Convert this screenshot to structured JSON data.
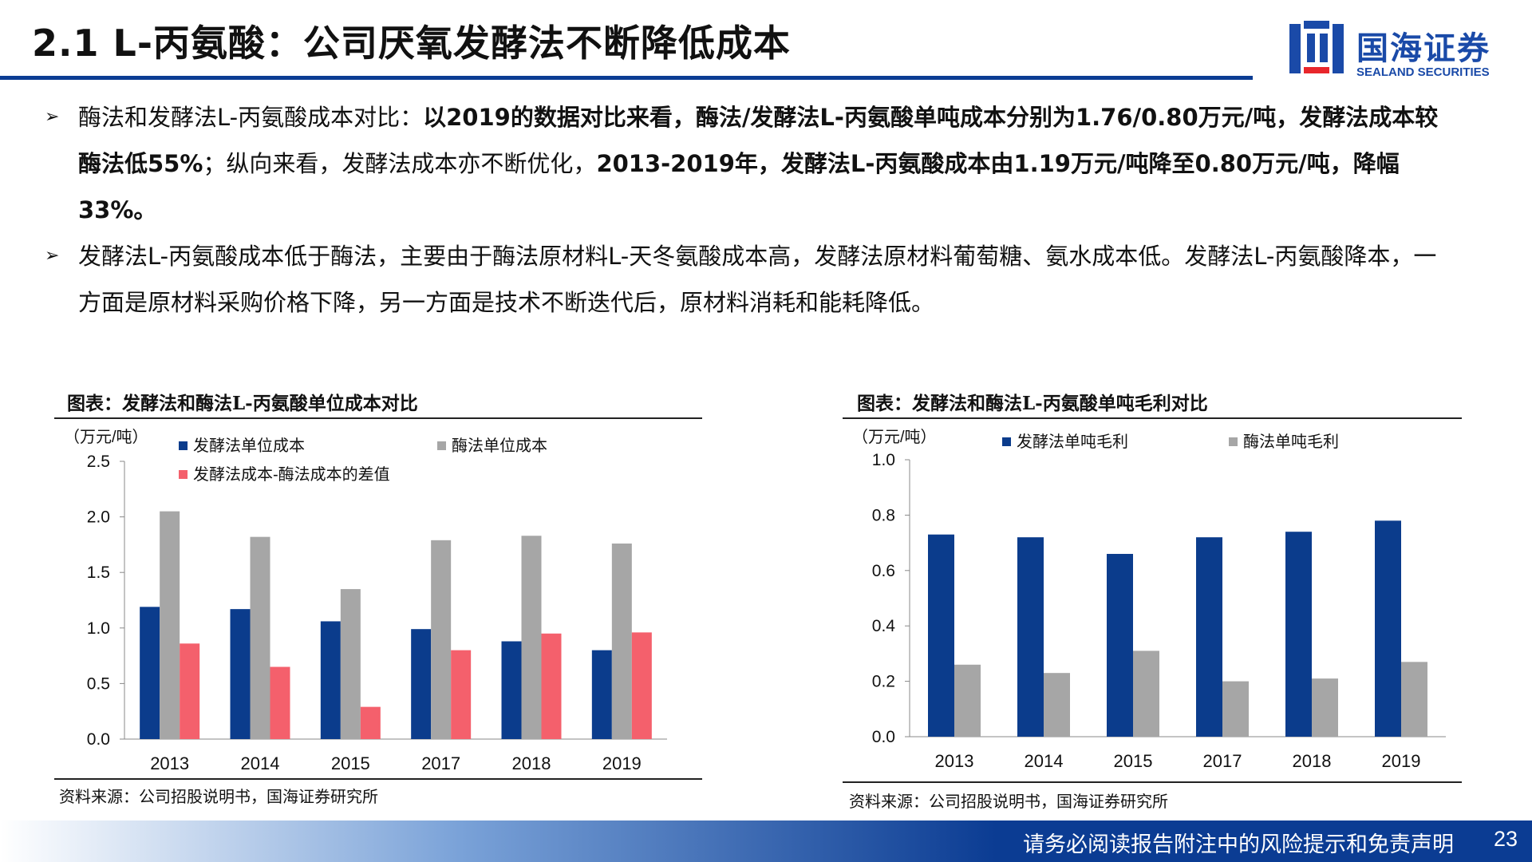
{
  "title": "2.1 L-丙氨酸：公司厌氧发酵法不断降低成本",
  "logo": {
    "cn": "国海证券",
    "en": "SEALAND SECURITIES"
  },
  "bullets": [
    {
      "arrow": "➢",
      "lead": "酶法和发酵法L-丙氨酸成本对比：",
      "bold1": "以2019的数据对比来看，酶法/发酵法L-丙氨酸单吨成本分别为1.76/0.80万元/吨，发酵法成本较酶法低55%",
      "mid": "；纵向来看，发酵法成本亦不断优化，",
      "bold2": "2013-2019年，发酵法L-丙氨酸成本由1.19万元/吨降至0.80万元/吨，降幅33%。"
    },
    {
      "arrow": "➢",
      "text": "发酵法L-丙氨酸成本低于酶法，主要由于酶法原材料L-天冬氨酸成本高，发酵法原材料葡萄糖、氨水成本低。发酵法L-丙氨酸降本，一方面是原材料采购价格下降，另一方面是技术不断迭代后，原材料消耗和能耗降低。"
    }
  ],
  "colors": {
    "navy": "#0b3c8c",
    "gray": "#a6a6a6",
    "red": "#f4606c"
  },
  "chart_data": [
    {
      "type": "bar",
      "title": "图表：发酵法和酶法L-丙氨酸单位成本对比",
      "unit": "（万元/吨）",
      "categories": [
        "2013",
        "2014",
        "2015",
        "2017",
        "2018",
        "2019"
      ],
      "series": [
        {
          "name": "发酵法单位成本",
          "color": "#0b3c8c",
          "values": [
            1.19,
            1.17,
            1.06,
            0.99,
            0.88,
            0.8
          ]
        },
        {
          "name": "酶法单位成本",
          "color": "#a6a6a6",
          "values": [
            2.05,
            1.82,
            1.35,
            1.79,
            1.83,
            1.76
          ]
        },
        {
          "name": "发酵法成本-酶法成本的差值",
          "color": "#f4606c",
          "values": [
            0.86,
            0.65,
            0.29,
            0.8,
            0.95,
            0.96
          ]
        }
      ],
      "ylim": [
        0,
        2.5
      ],
      "yticks": [
        "0.0",
        "0.5",
        "1.0",
        "1.5",
        "2.0",
        "2.5"
      ],
      "source": "资料来源：公司招股说明书，国海证券研究所"
    },
    {
      "type": "bar",
      "title": "图表：发酵法和酶法L-丙氨酸单吨毛利对比",
      "unit": "（万元/吨）",
      "categories": [
        "2013",
        "2014",
        "2015",
        "2017",
        "2018",
        "2019"
      ],
      "series": [
        {
          "name": "发酵法单吨毛利",
          "color": "#0b3c8c",
          "values": [
            0.73,
            0.72,
            0.66,
            0.72,
            0.74,
            0.78
          ]
        },
        {
          "name": "酶法单吨毛利",
          "color": "#a6a6a6",
          "values": [
            0.26,
            0.23,
            0.31,
            0.2,
            0.21,
            0.27
          ]
        }
      ],
      "ylim": [
        0,
        1.0
      ],
      "yticks": [
        "0.0",
        "0.2",
        "0.4",
        "0.6",
        "0.8",
        "1.0"
      ],
      "source": "资料来源：公司招股说明书，国海证券研究所"
    }
  ],
  "footer": {
    "disclaimer": "请务必阅读报告附注中的风险提示和免责声明",
    "page": "23"
  }
}
